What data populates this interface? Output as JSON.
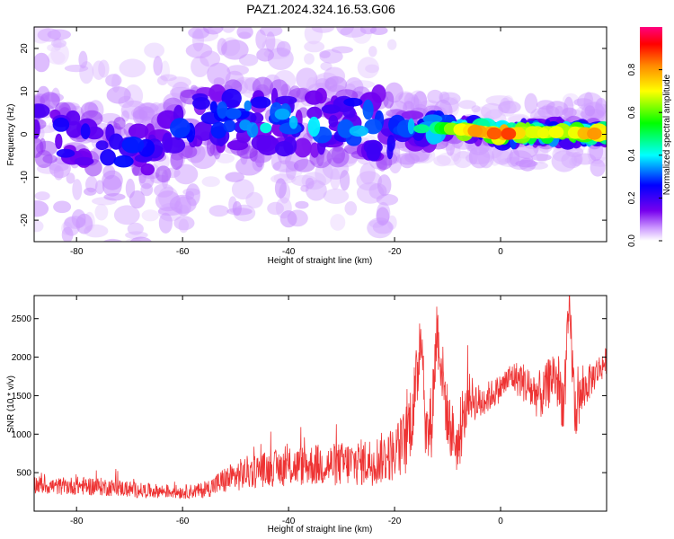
{
  "figure": {
    "title": "PAZ1.2024.324.16.53.G06"
  },
  "chart_data": [
    {
      "type": "heatmap",
      "xlabel": "Height of straight line (km)",
      "ylabel": "Frequency (Hz)",
      "xlim": [
        -88,
        20
      ],
      "ylim": [
        -25,
        25
      ],
      "xticks": [
        -80,
        -60,
        -40,
        -20,
        0
      ],
      "yticks": [
        -20,
        -10,
        0,
        10,
        20
      ],
      "colorbar": {
        "label": "Normalized spectral amplitude",
        "range": [
          0,
          1
        ],
        "ticks": [
          0.0,
          0.2,
          0.4,
          0.6,
          0.8
        ],
        "tick_labels": [
          "0.0",
          "0.2",
          "0.4",
          "0.6",
          "0.8"
        ],
        "colormap": [
          "#ffffff",
          "#cc99ff",
          "#7700ee",
          "#0000ff",
          "#00ffff",
          "#00ff00",
          "#ffff00",
          "#ff8800",
          "#ff0000",
          "#ff0080"
        ]
      },
      "ridge": [
        {
          "x": -88,
          "y": 2,
          "a": 0.28
        },
        {
          "x": -80,
          "y": -2,
          "a": 0.3
        },
        {
          "x": -72,
          "y": -4,
          "a": 0.3
        },
        {
          "x": -64,
          "y": -3,
          "a": 0.26
        },
        {
          "x": -58,
          "y": 4,
          "a": 0.32
        },
        {
          "x": -50,
          "y": 4,
          "a": 0.36
        },
        {
          "x": -44,
          "y": 3,
          "a": 0.45
        },
        {
          "x": -38,
          "y": 1,
          "a": 0.4
        },
        {
          "x": -30,
          "y": 3,
          "a": 0.38
        },
        {
          "x": -24,
          "y": 2,
          "a": 0.42
        },
        {
          "x": -18,
          "y": 1,
          "a": 0.4
        },
        {
          "x": -12,
          "y": 1.5,
          "a": 0.55
        },
        {
          "x": -6,
          "y": 1,
          "a": 0.8
        },
        {
          "x": 0,
          "y": 0,
          "a": 0.95
        },
        {
          "x": 6,
          "y": 0.5,
          "a": 0.75
        },
        {
          "x": 12,
          "y": 0.5,
          "a": 0.7
        },
        {
          "x": 20,
          "y": 0,
          "a": 0.85
        }
      ]
    },
    {
      "type": "line",
      "xlabel": "Height of straight line (km)",
      "ylabel": "SNR (10 * v/v)",
      "xlim": [
        -88,
        20
      ],
      "ylim": [
        0,
        2800
      ],
      "xticks": [
        -80,
        -60,
        -40,
        -20,
        0
      ],
      "yticks": [
        500,
        1000,
        1500,
        2000,
        2500
      ],
      "series_color": "#ee3333",
      "series": [
        {
          "x": [
            -88,
            -84,
            -80,
            -76,
            -72,
            -68,
            -64,
            -60,
            -56,
            -52,
            -48,
            -44,
            -40,
            -36,
            -32,
            -28,
            -24,
            -20,
            -18,
            -16,
            -15,
            -14,
            -13,
            -12,
            -10,
            -8,
            -6,
            -4,
            -2,
            0,
            2,
            4,
            6,
            8,
            10,
            12,
            13,
            14,
            16,
            18,
            20
          ],
          "y": [
            350,
            320,
            330,
            320,
            300,
            270,
            260,
            250,
            270,
            400,
            500,
            550,
            570,
            600,
            600,
            620,
            650,
            750,
            900,
            1500,
            2500,
            900,
            1200,
            2400,
            1200,
            800,
            1500,
            1400,
            1500,
            1600,
            1750,
            1700,
            1550,
            1500,
            1800,
            1400,
            2700,
            1300,
            1600,
            1800,
            1950
          ],
          "noise": [
            120,
            110,
            120,
            120,
            110,
            100,
            90,
            90,
            100,
            180,
            220,
            230,
            250,
            270,
            280,
            300,
            320,
            360,
            450,
            550,
            500,
            480,
            500,
            450,
            420,
            350,
            300,
            250,
            200,
            180,
            200,
            250,
            300,
            320,
            350,
            400,
            350,
            400,
            250,
            200,
            180
          ]
        }
      ]
    }
  ]
}
